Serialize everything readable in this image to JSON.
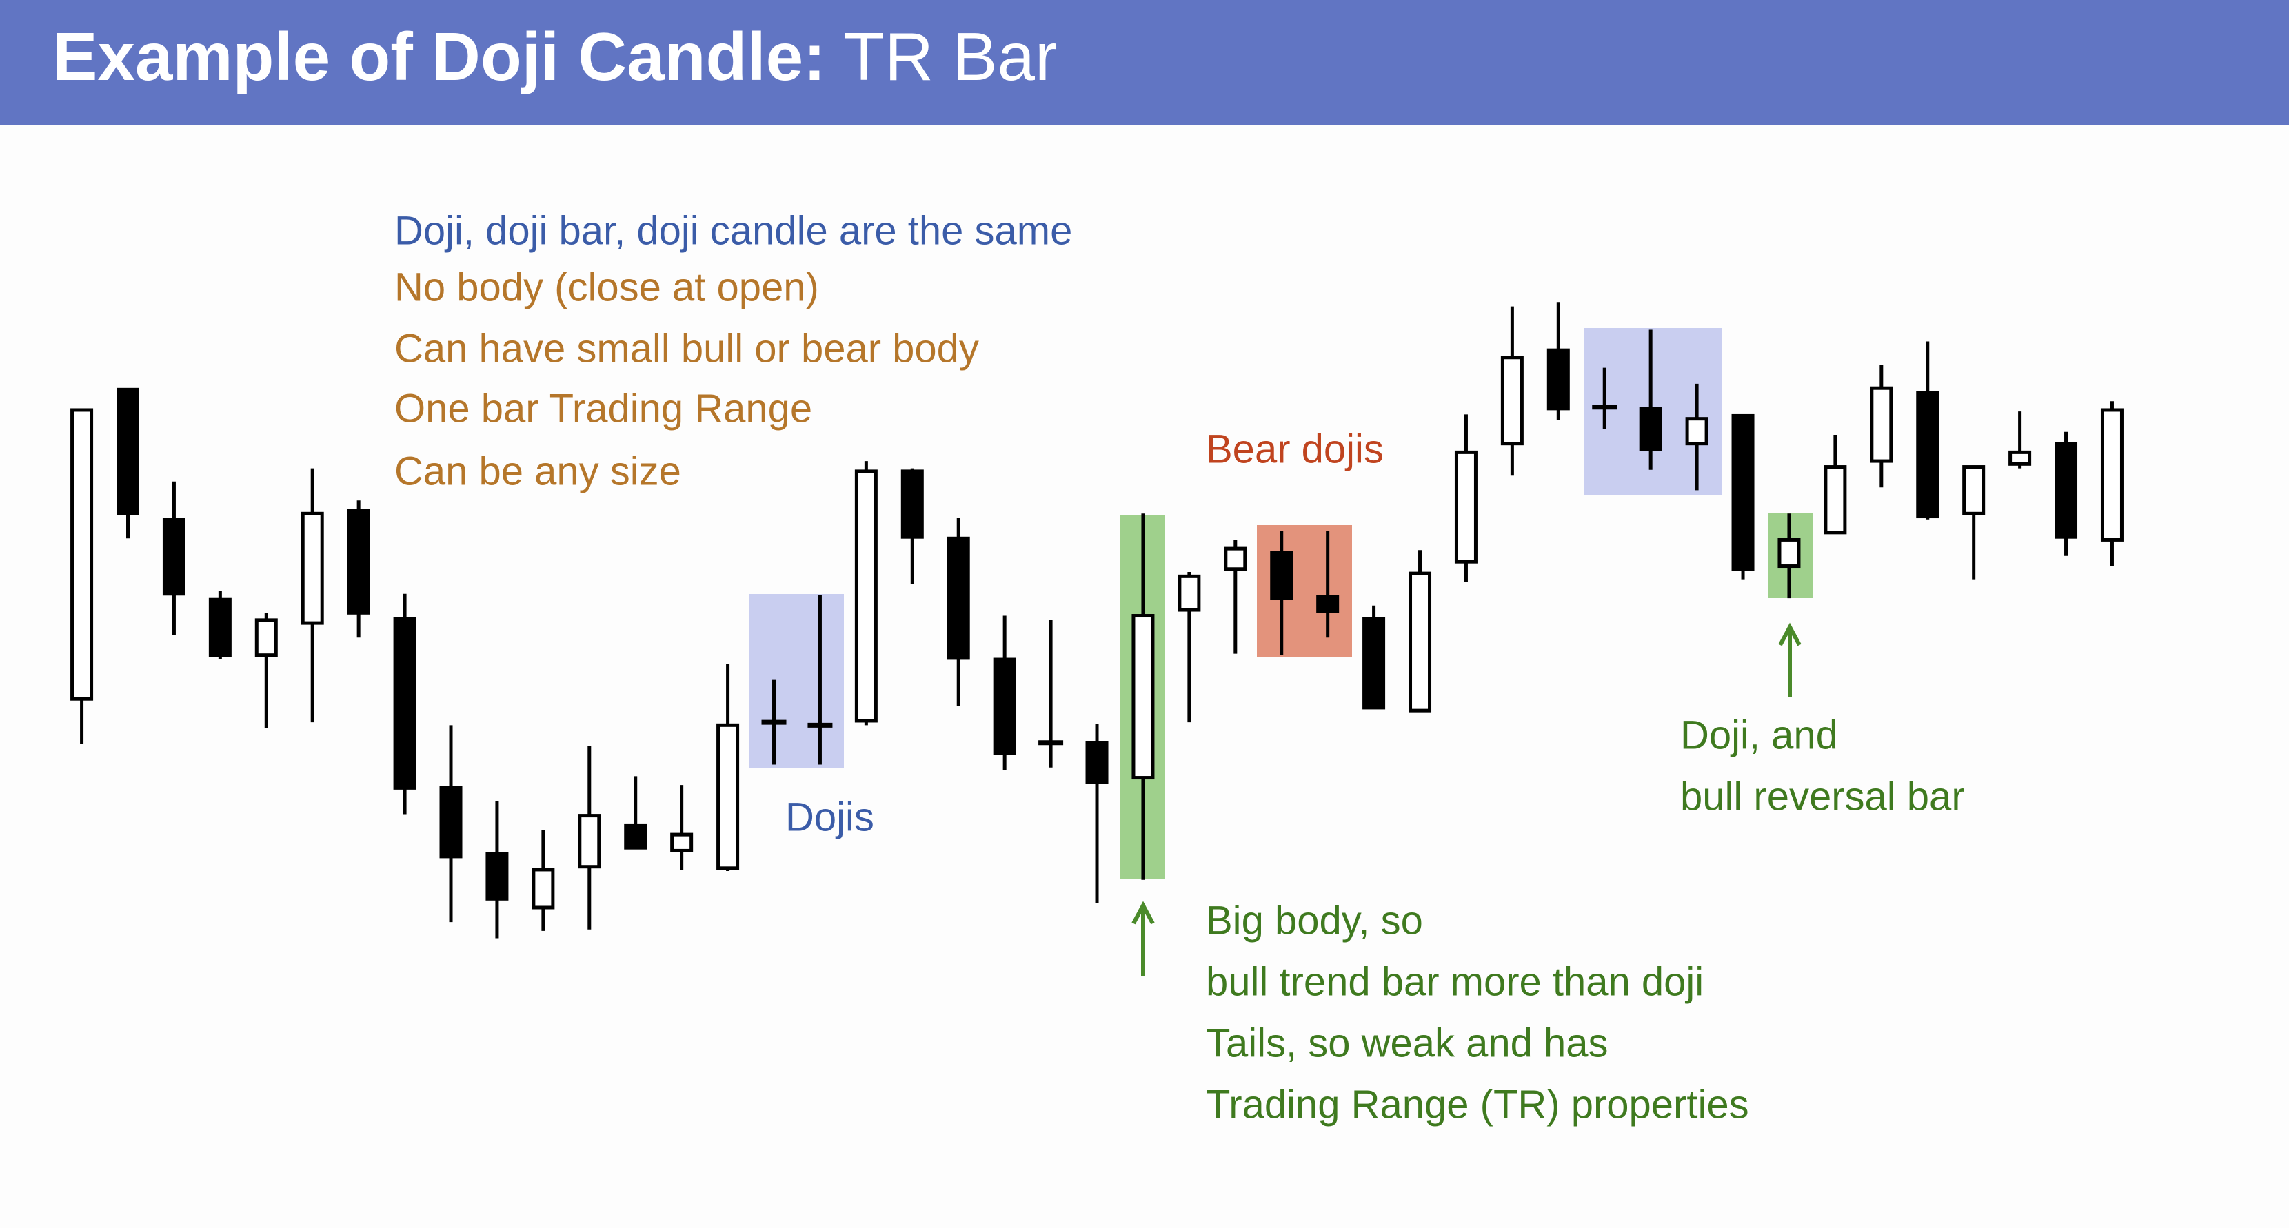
{
  "chart_data": {
    "type": "candlestick",
    "title": {
      "bold": "Example of Doji Candle:",
      "regular": "TR Bar"
    },
    "open": [
      221,
      433,
      344,
      289,
      251,
      273,
      350,
      276,
      160,
      115,
      78,
      106,
      134,
      117,
      105,
      205,
      203,
      206,
      377,
      331,
      248,
      191,
      191,
      167,
      282,
      310,
      321,
      291,
      276,
      213,
      315,
      396,
      460,
      421,
      420,
      396,
      415,
      312,
      335,
      384,
      431,
      348,
      382,
      396,
      330
    ],
    "high": [
      419,
      433,
      370,
      295,
      280,
      379,
      357,
      293,
      203,
      151,
      131,
      189,
      168,
      162,
      245,
      234,
      292,
      384,
      379,
      345,
      278,
      275,
      204,
      348,
      308,
      330,
      336,
      336,
      285,
      323,
      416,
      490,
      493,
      448,
      474,
      437,
      415,
      348,
      402,
      450,
      466,
      381,
      418,
      404,
      425
    ],
    "low": [
      190,
      331,
      265,
      248,
      201,
      205,
      263,
      142,
      68,
      57,
      62,
      63,
      119,
      104,
      103,
      176,
      176,
      203,
      300,
      216,
      172,
      174,
      81,
      97,
      205,
      252,
      251,
      263,
      215,
      212,
      301,
      374,
      412,
      406,
      378,
      364,
      303,
      290,
      334,
      366,
      344,
      303,
      379,
      319,
      312
    ],
    "close": [
      419,
      348,
      293,
      251,
      275,
      348,
      280,
      160,
      113,
      84,
      104,
      141,
      119,
      128,
      203,
      205,
      203,
      377,
      332,
      249,
      184,
      191,
      164,
      278,
      305,
      324,
      290,
      281,
      215,
      307,
      390,
      455,
      420,
      421,
      392,
      413,
      310,
      330,
      380,
      434,
      346,
      380,
      390,
      332,
      419
    ],
    "ylim": [
      0,
      500
    ],
    "notes": {
      "intro": [
        "Doji, doji bar, doji candle are the same",
        "No body (close at open)",
        "Can have small bull or bear body",
        "One bar Trading Range",
        "Can be any size"
      ],
      "bear": "Bear dojis",
      "dojis": "Dojis",
      "reversal": [
        "Doji, and",
        "bull reversal bar"
      ],
      "big_body": [
        "Big body, so",
        "bull trend bar more than doji",
        "Tails, so weak and has",
        "Trading Range (TR) properties"
      ]
    }
  }
}
